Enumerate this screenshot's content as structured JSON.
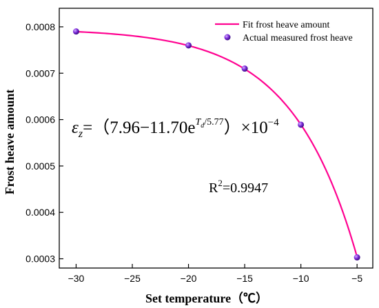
{
  "chart_data": {
    "type": "scatter",
    "xlabel": "Set temperature（℃）",
    "ylabel": "Frost heave amount",
    "xlim": [
      -31.5,
      -3.6
    ],
    "ylim": [
      0.00028,
      0.00084
    ],
    "xticks": [
      -30,
      -25,
      -20,
      -15,
      -10,
      -5
    ],
    "xtick_labels": [
      "−30",
      "−25",
      "−20",
      "−15",
      "−10",
      "−5"
    ],
    "yticks": [
      0.0003,
      0.0004,
      0.0005,
      0.0006,
      0.0007,
      0.0008
    ],
    "ytick_labels": [
      "0.0003",
      "0.0004",
      "0.0005",
      "0.0006",
      "0.0007",
      "0.0008"
    ],
    "legend_position": "top-right",
    "series": [
      {
        "name": "Fit frost heave amount",
        "kind": "line",
        "color": "#ff0090",
        "fit": {
          "a": 7.96,
          "b": 11.7,
          "c": 5.77,
          "scale": 0.0001
        }
      },
      {
        "name": "Actual measured frost heave",
        "kind": "scatter",
        "color": "#7a28d9",
        "x": [
          -30,
          -20,
          -15,
          -10,
          -5
        ],
        "y": [
          0.00079,
          0.00076,
          0.00071,
          0.000589,
          0.000303
        ]
      }
    ],
    "annotations": {
      "equation": {
        "lhs": "ε",
        "lhs_sub": "z",
        "eq": "=（7.96−11.70e",
        "exp": "T",
        "exp_sub": "d",
        "exp_rest": "/5.77",
        "rhs": "）×10",
        "power": "−4"
      },
      "r2": {
        "label": "R",
        "sup": "2",
        "value": "=0.9947"
      }
    }
  }
}
